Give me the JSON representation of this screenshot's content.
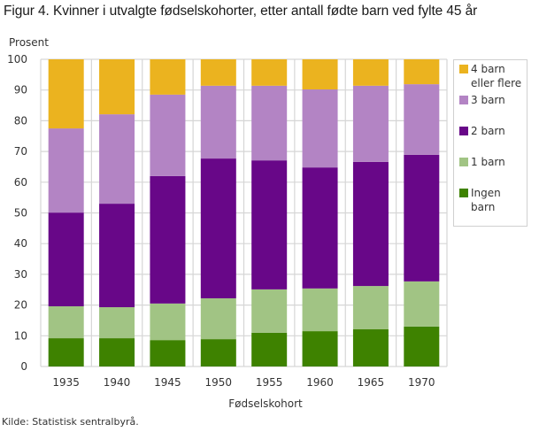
{
  "title": "Figur 4. Kvinner i utvalgte fødselskohorter, etter antall fødte barn ved fylte 45 år",
  "source": "Kilde: Statistisk sentralbyrå.",
  "chart_data": {
    "type": "bar",
    "stacked": true,
    "title": "Figur 4. Kvinner i utvalgte fødselskohorter, etter antall fødte barn ved fylte 45 år",
    "xlabel": "Fødselskohort",
    "ylabel": "Prosent",
    "ylim": [
      0,
      100
    ],
    "yticks": [
      0,
      10,
      20,
      30,
      40,
      50,
      60,
      70,
      80,
      90,
      100
    ],
    "grid": true,
    "legend_position": "right",
    "categories": [
      "1935",
      "1940",
      "1945",
      "1950",
      "1955",
      "1960",
      "1965",
      "1970"
    ],
    "series": [
      {
        "name": "Ingen barn",
        "legend_lines": [
          "Ingen",
          "barn"
        ],
        "color": "#3e8200",
        "values": [
          9.2,
          9.2,
          8.6,
          8.9,
          11.0,
          11.5,
          12.1,
          13.0
        ]
      },
      {
        "name": "1 barn",
        "legend_lines": [
          "1 barn"
        ],
        "color": "#a1c484",
        "values": [
          10.4,
          10.1,
          11.9,
          13.3,
          14.1,
          13.9,
          14.1,
          14.7
        ]
      },
      {
        "name": "2 barn",
        "legend_lines": [
          "2 barn"
        ],
        "color": "#680788",
        "values": [
          30.5,
          33.7,
          41.5,
          45.5,
          42.0,
          39.4,
          40.4,
          41.2
        ]
      },
      {
        "name": "3 barn",
        "legend_lines": [
          "3 barn"
        ],
        "color": "#b384c4",
        "values": [
          27.4,
          29.1,
          26.5,
          23.7,
          24.3,
          25.4,
          24.8,
          23.0
        ]
      },
      {
        "name": "4 barn eller flere",
        "legend_lines": [
          "4 barn",
          "eller flere"
        ],
        "color": "#ebb31f",
        "values": [
          22.5,
          17.9,
          11.5,
          8.6,
          8.6,
          9.8,
          8.6,
          8.1
        ]
      }
    ],
    "legend_order": [
      "4 barn eller flere",
      "3 barn",
      "2 barn",
      "1 barn",
      "Ingen barn"
    ]
  }
}
